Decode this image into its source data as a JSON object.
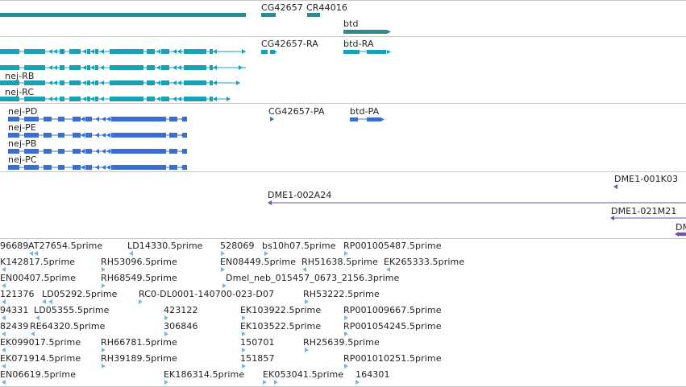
{
  "colors": {
    "gene": "#2e8b8b",
    "rna": "#1aa0b4",
    "protein": "#3a6fd0",
    "clone": "#7050b0",
    "est": "#7fb3d5",
    "separator": "#c8c8c8",
    "text": "#222222"
  },
  "tracks": {
    "genes": {
      "labels": [
        "CG42657",
        "CR44016",
        "btd"
      ]
    },
    "rna": {
      "labels": [
        "CG42657-RA",
        "btd-RA",
        "nej-RB",
        "nej-RC"
      ]
    },
    "proteins": {
      "labels": [
        "nej-PD",
        "nej-PE",
        "nej-PB",
        "nej-PC",
        "CG42657-PA",
        "btd-PA"
      ]
    },
    "clones": {
      "labels": [
        "DME1-001K03",
        "DME1-002A24",
        "DME1-021M21",
        "DM"
      ]
    },
    "ests": {
      "labels": [
        "96689",
        "AT27654.5prime",
        "LD14330.5prime",
        "528069",
        "bs10h07.5prime",
        "RP001005487.5prime",
        "K142817.5prime",
        "RH53096.5prime",
        "EN08449.5prime",
        "RH51638.5prime",
        "EK265333.5prime",
        "EN00407.5prime",
        "RH68549.5prime",
        "Dmel_neb_015457_0673_2156.3prime",
        "121376",
        "LD05292.5prime",
        "RC0-DL0001-140700-023-D07",
        "RH53222.5prime",
        "94331",
        "LD05355.5prime",
        "423122",
        "EK103922.5prime",
        "RP001009667.5prime",
        "82439",
        "RE64320.5prime",
        "306846",
        "EK103522.5prime",
        "RP001054245.5prime",
        "EK099017.5prime",
        "RH66781.5prime",
        "150701",
        "RH25639.5prime",
        "EK071914.5prime",
        "RH39189.5prime",
        "151857",
        "RP001010251.5prime",
        "EN06619.5prime",
        "EK186314.5prime",
        "EK053041.5prime",
        "164301"
      ]
    }
  }
}
